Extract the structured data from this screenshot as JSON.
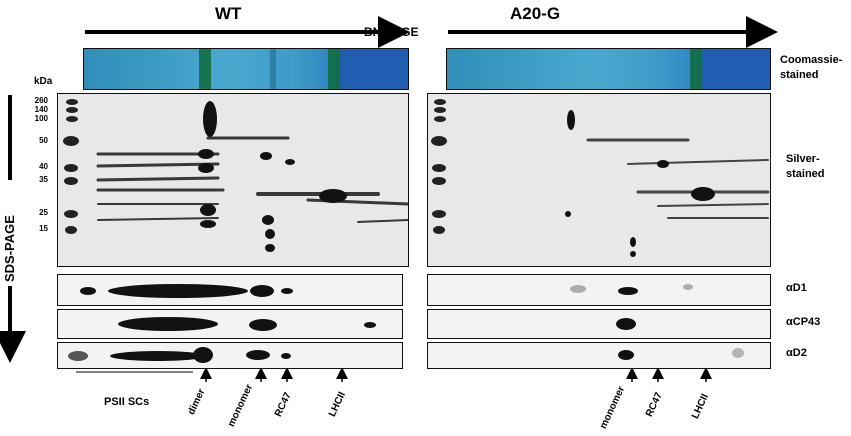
{
  "header": {
    "wt_label": "WT",
    "mutant_label": "A20-G",
    "bn_page_label": "BN-PAGE"
  },
  "side": {
    "sds_page_label": "SDS-PAGE",
    "kda_label": "kDa"
  },
  "markers": [
    "260",
    "140",
    "100",
    "50",
    "40",
    "35",
    "25",
    "15"
  ],
  "row_labels": {
    "coomassie": "Coomassie-\nstained",
    "coomassie_line1": "Coomassie-",
    "coomassie_line2": "stained",
    "silver_line1": "Silver-",
    "silver_line2": "stained",
    "d1": "αD1",
    "cp43": "αCP43",
    "d2": "αD2"
  },
  "bottom_labels": {
    "psii_scs": "PSII SCs",
    "wt": [
      "dimer",
      "monomer",
      "RC47",
      "LHCII"
    ],
    "mutant": [
      "monomer",
      "RC47",
      "LHCII"
    ]
  },
  "colors": {
    "coomassie_blue": "#2f8fb8",
    "band_green": "#0f6b3a",
    "band_dark": "#111111"
  }
}
